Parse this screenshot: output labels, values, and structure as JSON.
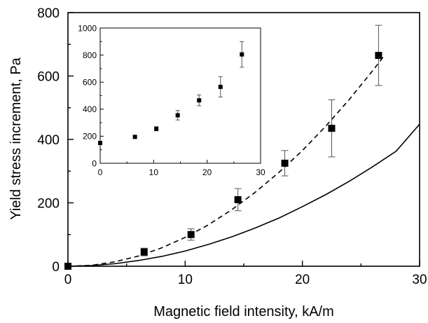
{
  "chart_data": [
    {
      "type": "scatter",
      "xlabel": "Magnetic field intensity, kA/m",
      "ylabel": "Yield stress increment, Pa",
      "xlim": [
        0,
        30
      ],
      "ylim": [
        0,
        800
      ],
      "xticks": [
        0,
        10,
        20,
        30
      ],
      "yticks": [
        0,
        200,
        400,
        600,
        800
      ],
      "grid": false,
      "series": [
        {
          "kind": "scatter",
          "marker": "square",
          "x": [
            0,
            6.5,
            10.5,
            14.5,
            18.5,
            22.5,
            26.5
          ],
          "y": [
            0,
            45,
            100,
            210,
            325,
            435,
            665
          ],
          "err": [
            0,
            12,
            18,
            35,
            40,
            90,
            95
          ]
        },
        {
          "kind": "line",
          "style": "dashed",
          "x": [
            0,
            2,
            4,
            6,
            8,
            10,
            12,
            14,
            16,
            18,
            20,
            22,
            24,
            26,
            27
          ],
          "y": [
            0,
            3,
            14,
            32,
            58,
            91,
            131,
            179,
            234,
            296,
            365,
            442,
            526,
            617,
            665
          ]
        },
        {
          "kind": "line",
          "style": "solid",
          "x": [
            0,
            2,
            4,
            6,
            8,
            10,
            12,
            14,
            16,
            18,
            20,
            22,
            24,
            26,
            28,
            30
          ],
          "y": [
            0,
            2,
            8,
            18,
            31,
            48,
            69,
            93,
            121,
            152,
            188,
            226,
            268,
            314,
            363,
            448
          ]
        }
      ]
    },
    {
      "type": "scatter",
      "inset": true,
      "xlim": [
        0,
        30
      ],
      "ylim": [
        0,
        1000
      ],
      "xticks": [
        0,
        10,
        20,
        30
      ],
      "yticks": [
        0,
        200,
        400,
        600,
        800,
        1000
      ],
      "grid": false,
      "series": [
        {
          "kind": "scatter",
          "marker": "square",
          "x": [
            0,
            6.5,
            10.5,
            14.5,
            18.5,
            22.5,
            26.5
          ],
          "y": [
            150,
            195,
            255,
            355,
            465,
            565,
            805
          ],
          "err": [
            0,
            8,
            15,
            35,
            40,
            75,
            95
          ]
        }
      ]
    }
  ]
}
